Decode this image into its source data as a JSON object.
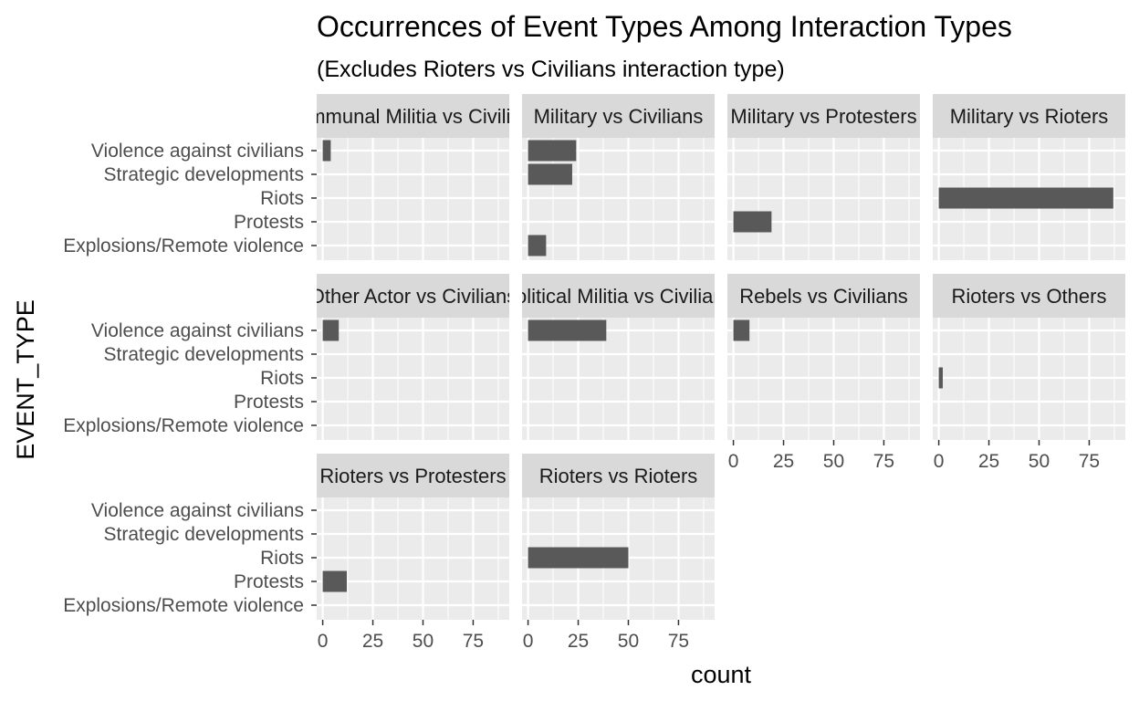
{
  "chart_data": {
    "type": "bar",
    "orientation": "horizontal",
    "title": "Occurrences of Event Types Among Interaction Types",
    "subtitle": "(Excludes Rioters vs Civilians interaction type)",
    "xlabel": "count",
    "ylabel": "EVENT_TYPE",
    "xlim": [
      -3,
      93
    ],
    "x_ticks": [
      0,
      25,
      50,
      75
    ],
    "categories": [
      "Violence against civilians",
      "Strategic developments",
      "Riots",
      "Protests",
      "Explosions/Remote violence"
    ],
    "grid": true,
    "facet_layout": "wrap, 4 columns",
    "panels": [
      {
        "name": "Communal Militia vs Civilians",
        "values": {
          "Violence against civilians": 4
        }
      },
      {
        "name": "Military vs Civilians",
        "values": {
          "Violence against civilians": 24,
          "Strategic developments": 22,
          "Explosions/Remote violence": 9
        }
      },
      {
        "name": "Military vs Protesters",
        "values": {
          "Protests": 19
        }
      },
      {
        "name": "Military vs Rioters",
        "values": {
          "Riots": 87
        }
      },
      {
        "name": "Other Actor vs Civilians",
        "values": {
          "Violence against civilians": 8
        }
      },
      {
        "name": "Political Militia vs Civilians",
        "values": {
          "Violence against civilians": 39
        }
      },
      {
        "name": "Rebels vs Civilians",
        "values": {
          "Violence against civilians": 8
        }
      },
      {
        "name": "Rioters vs Others",
        "values": {
          "Riots": 2
        }
      },
      {
        "name": "Rioters vs Protesters",
        "values": {
          "Protests": 12
        }
      },
      {
        "name": "Rioters vs Rioters",
        "values": {
          "Riots": 50
        }
      }
    ],
    "colors": {
      "bar": "#595959",
      "panel_bg": "#ebebeb",
      "strip_bg": "#d9d9d9",
      "grid": "#ffffff"
    }
  }
}
